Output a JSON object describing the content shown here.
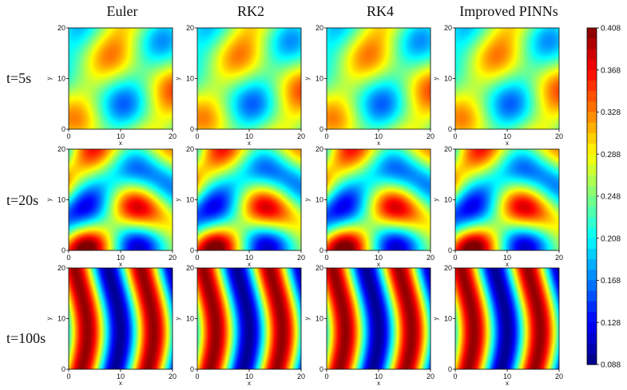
{
  "chart_data": {
    "type": "heatmap",
    "columns": [
      "Euler",
      "RK2",
      "RK4",
      "Improved PINNs"
    ],
    "rows": [
      "t=5s",
      "t=20s",
      "t=100s"
    ],
    "xlabel": "x",
    "ylabel": "y",
    "xlim": [
      0,
      20
    ],
    "ylim": [
      0,
      20
    ],
    "x_ticks": [
      "0",
      "10",
      "20"
    ],
    "y_ticks": [
      "0",
      "10",
      "20"
    ],
    "colorbar": {
      "min": 0.088,
      "max": 0.408,
      "ticks": [
        "0.408",
        "0.368",
        "0.328",
        "0.288",
        "0.248",
        "0.208",
        "0.168",
        "0.128",
        "0.088"
      ],
      "colormap": "jet"
    },
    "colors": {
      "low": "#00007f",
      "mid": "#7fff7f",
      "high": "#7f0000"
    }
  }
}
